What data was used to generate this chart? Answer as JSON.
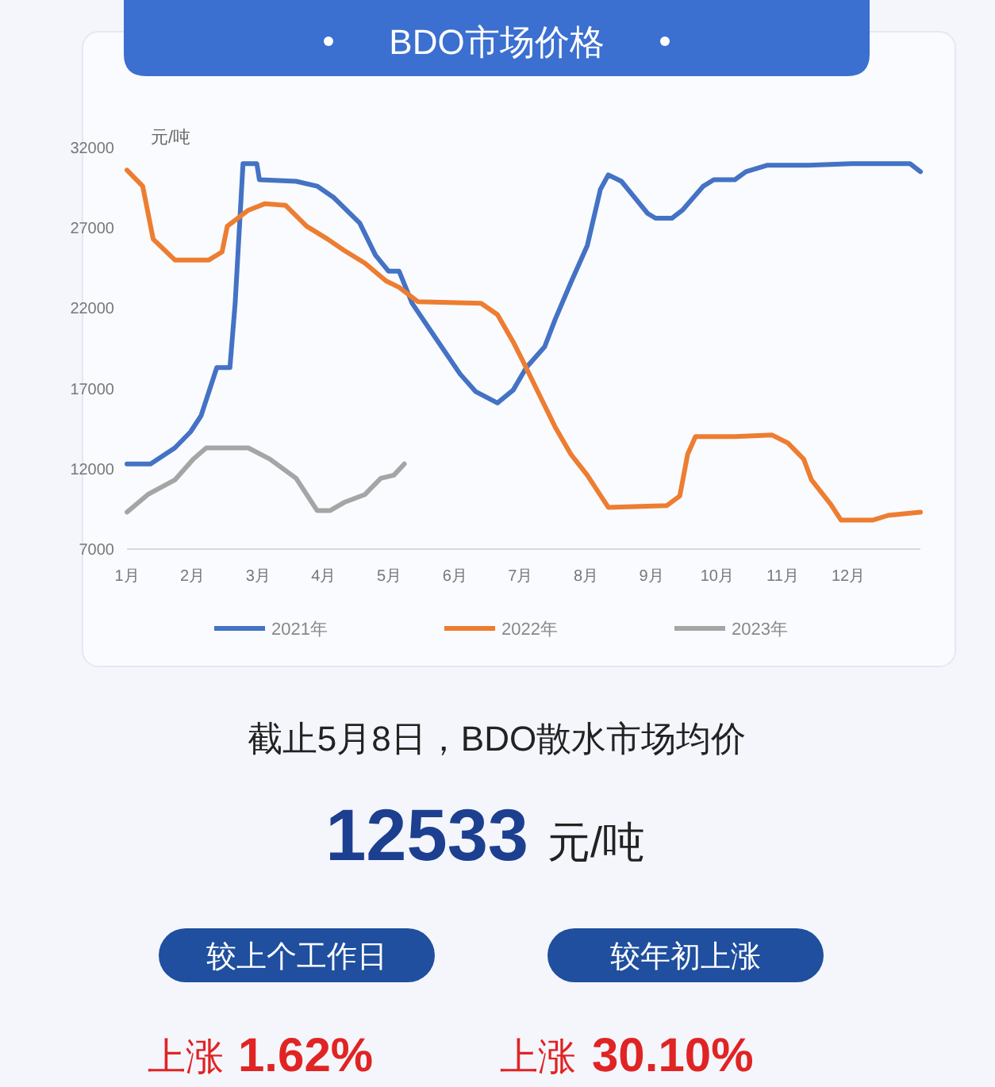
{
  "chart_data": {
    "type": "line",
    "title": "BDO市场价格",
    "ylabel": "元/吨",
    "xlim": [
      1,
      13.1
    ],
    "xticks": [
      {
        "value": 1,
        "label": "1月"
      },
      {
        "value": 2,
        "label": "2月"
      },
      {
        "value": 3,
        "label": "3月"
      },
      {
        "value": 4,
        "label": "4月"
      },
      {
        "value": 5,
        "label": "5月"
      },
      {
        "value": 6,
        "label": "6月"
      },
      {
        "value": 7,
        "label": "7月"
      },
      {
        "value": 8,
        "label": "8月"
      },
      {
        "value": 9,
        "label": "9月"
      },
      {
        "value": 10,
        "label": "10月"
      },
      {
        "value": 11,
        "label": "11月"
      },
      {
        "value": 12,
        "label": "12月"
      }
    ],
    "ylim": [
      7000,
      32000
    ],
    "yticks": [
      7000,
      12000,
      17000,
      22000,
      27000,
      32000
    ],
    "legend": "bottom",
    "series": [
      {
        "name": "2021年",
        "color": "#4472c4",
        "x": [
          1.0,
          1.36,
          1.73,
          1.97,
          2.13,
          2.29,
          2.37,
          2.57,
          2.65,
          2.77,
          2.98,
          3.02,
          3.58,
          3.9,
          4.15,
          4.55,
          4.79,
          4.99,
          5.15,
          5.35,
          5.68,
          6.08,
          6.32,
          6.65,
          6.89,
          7.09,
          7.37,
          7.53,
          7.77,
          8.02,
          8.22,
          8.34,
          8.54,
          8.94,
          9.06,
          9.31,
          9.47,
          9.79,
          9.95,
          10.27,
          10.44,
          10.76,
          11.4,
          12.05,
          12.94,
          13.1
        ],
        "values": [
          12300,
          12300,
          13300,
          14300,
          15300,
          17300,
          18300,
          18300,
          22300,
          31000,
          31000,
          30000,
          29900,
          29600,
          28900,
          27300,
          25300,
          24300,
          24300,
          22300,
          20300,
          17900,
          16800,
          16100,
          16900,
          18300,
          19600,
          21300,
          23600,
          25900,
          29400,
          30300,
          29900,
          27900,
          27600,
          27600,
          28100,
          29600,
          30000,
          30000,
          30500,
          30900,
          30900,
          31000,
          31000,
          30500
        ]
      },
      {
        "name": "2022年",
        "color": "#ed7d31",
        "x": [
          1.0,
          1.24,
          1.4,
          1.73,
          2.25,
          2.45,
          2.53,
          2.85,
          3.1,
          3.42,
          3.74,
          4.06,
          4.31,
          4.63,
          4.95,
          5.15,
          5.44,
          6.4,
          6.65,
          6.89,
          7.05,
          7.29,
          7.53,
          7.77,
          8.02,
          8.34,
          9.23,
          9.43,
          9.55,
          9.67,
          10.27,
          10.84,
          11.08,
          11.32,
          11.44,
          11.73,
          11.89,
          12.37,
          12.61,
          13.1
        ],
        "values": [
          30600,
          29600,
          26300,
          25000,
          25000,
          25500,
          27100,
          28100,
          28500,
          28400,
          27100,
          26300,
          25600,
          24800,
          23700,
          23300,
          22400,
          22300,
          21600,
          19900,
          18600,
          16600,
          14600,
          12900,
          11600,
          9600,
          9700,
          10300,
          12900,
          14000,
          14000,
          14100,
          13600,
          12600,
          11300,
          9800,
          8800,
          8800,
          9100,
          9300
        ]
      },
      {
        "name": "2023年",
        "color": "#a5a5a5",
        "x": [
          1.0,
          1.32,
          1.73,
          2.01,
          2.21,
          2.85,
          3.18,
          3.58,
          3.9,
          4.1,
          4.31,
          4.63,
          4.87,
          5.07,
          5.23
        ],
        "values": [
          9300,
          10400,
          11300,
          12600,
          13300,
          13300,
          12600,
          11400,
          9400,
          9400,
          9900,
          10400,
          11400,
          11600,
          12300
        ]
      }
    ],
    "annotations": [
      "截止5月8日，BDO散水市场均价",
      "12533",
      "元/吨",
      "较上个工作日",
      "较年初上涨",
      "上涨",
      "1.62%",
      "上涨",
      "30.10%"
    ]
  }
}
